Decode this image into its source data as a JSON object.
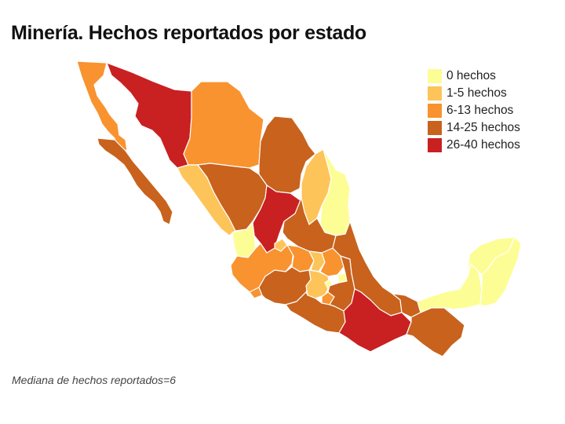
{
  "title": "Minería. Hechos reportados por estado",
  "note": "Mediana de hechos reportados=6",
  "legend": [
    {
      "label": "0 hechos",
      "color": "#fdfd96"
    },
    {
      "label": "1-5 hechos",
      "color": "#fdc45a"
    },
    {
      "label": "6-13 hechos",
      "color": "#f89330"
    },
    {
      "label": "14-25 hechos",
      "color": "#c8621d"
    },
    {
      "label": "26-40 hechos",
      "color": "#c92022"
    }
  ]
}
